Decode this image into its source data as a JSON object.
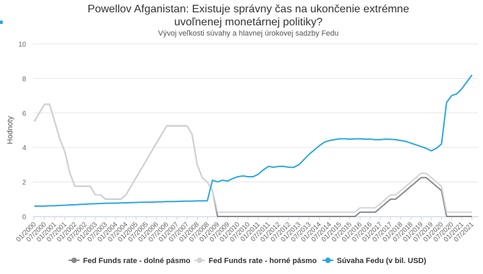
{
  "chart_data": {
    "type": "line",
    "title": "Powellov Afganistan: Existuje správny čas na ukončenie extrémne uvoľnenej monetárnej politiky?",
    "subtitle": "Vývoj veľkosti súvahy a hlavnej úrokovej sadzby Fedu",
    "y_label": "Hodnoty",
    "categories": [
      "01/2000",
      null,
      "07/2000",
      null,
      "01/2001",
      null,
      "07/2001",
      null,
      "01/2002",
      null,
      "07/2002",
      null,
      "01/2003",
      null,
      "07/2003",
      null,
      "01/2004",
      null,
      "07/2004",
      null,
      "01/2005",
      null,
      "07/2005",
      null,
      "01/2006",
      null,
      "07/2006",
      null,
      "01/2007",
      null,
      "07/2007",
      null,
      "01/2008",
      null,
      "07/2008",
      null,
      "01/2009",
      null,
      "07/2009",
      null,
      "01/2010",
      null,
      "07/2010",
      null,
      "01/2011",
      null,
      "07/2011",
      null,
      "01/2012",
      null,
      "07/2012",
      null,
      "01/2013",
      null,
      "07/2013",
      null,
      "01/2014",
      null,
      "07/2014",
      null,
      "01/2015",
      null,
      "07/2015",
      null,
      "01/2016",
      null,
      "07/2016",
      null,
      "01/2017",
      null,
      "07/2017",
      null,
      "01/2018",
      null,
      "07/2018",
      null,
      "01/2019",
      null,
      "07/2019",
      null,
      "01/2020",
      null,
      "07/2020",
      null,
      "01/2021",
      null,
      "07/2021"
    ],
    "series": [
      {
        "name": "Fed Funds rate - dolné pásmo",
        "color": "#888888",
        "values": [
          5.5,
          6.0,
          6.5,
          6.5,
          5.5,
          4.5,
          3.75,
          2.5,
          1.75,
          1.75,
          1.75,
          1.75,
          1.25,
          1.25,
          1.0,
          1.0,
          1.0,
          1.0,
          1.25,
          1.75,
          2.25,
          2.75,
          3.25,
          3.75,
          4.25,
          4.75,
          5.25,
          5.25,
          5.25,
          5.25,
          5.25,
          4.75,
          3.0,
          2.25,
          2.0,
          1.5,
          0,
          0,
          0,
          0,
          0,
          0,
          0,
          0,
          0,
          0,
          0,
          0,
          0,
          0,
          0,
          0,
          0,
          0,
          0,
          0,
          0,
          0,
          0,
          0,
          0,
          0,
          0,
          0,
          0.25,
          0.25,
          0.25,
          0.25,
          0.5,
          0.75,
          1.0,
          1.0,
          1.25,
          1.5,
          1.75,
          2.0,
          2.25,
          2.25,
          2.0,
          1.75,
          1.5,
          0,
          0,
          0,
          0,
          0,
          0
        ]
      },
      {
        "name": "Fed Funds rate - horné pásmo",
        "color": "#d3d3d3",
        "values": [
          5.5,
          6.0,
          6.5,
          6.5,
          5.5,
          4.5,
          3.75,
          2.5,
          1.75,
          1.75,
          1.75,
          1.75,
          1.25,
          1.25,
          1.0,
          1.0,
          1.0,
          1.0,
          1.25,
          1.75,
          2.25,
          2.75,
          3.25,
          3.75,
          4.25,
          4.75,
          5.25,
          5.25,
          5.25,
          5.25,
          5.25,
          4.75,
          3.0,
          2.25,
          2.0,
          1.5,
          0.25,
          0.25,
          0.25,
          0.25,
          0.25,
          0.25,
          0.25,
          0.25,
          0.25,
          0.25,
          0.25,
          0.25,
          0.25,
          0.25,
          0.25,
          0.25,
          0.25,
          0.25,
          0.25,
          0.25,
          0.25,
          0.25,
          0.25,
          0.25,
          0.25,
          0.25,
          0.25,
          0.25,
          0.5,
          0.5,
          0.5,
          0.5,
          0.75,
          1.0,
          1.25,
          1.25,
          1.5,
          1.75,
          2.0,
          2.25,
          2.5,
          2.5,
          2.25,
          2.0,
          1.75,
          0.25,
          0.25,
          0.25,
          0.25,
          0.25,
          0.25
        ]
      },
      {
        "name": "Súvaha Fedu (v bil. USD)",
        "color": "#2aa6e0",
        "values": [
          0.6,
          0.6,
          0.6,
          0.62,
          0.62,
          0.64,
          0.65,
          0.67,
          0.68,
          0.7,
          0.71,
          0.73,
          0.74,
          0.75,
          0.76,
          0.77,
          0.77,
          0.78,
          0.79,
          0.8,
          0.81,
          0.82,
          0.82,
          0.83,
          0.84,
          0.85,
          0.86,
          0.86,
          0.87,
          0.88,
          0.89,
          0.89,
          0.9,
          0.9,
          0.91,
          2.1,
          2.0,
          2.1,
          2.05,
          2.2,
          2.3,
          2.35,
          2.3,
          2.3,
          2.45,
          2.7,
          2.9,
          2.85,
          2.9,
          2.9,
          2.85,
          2.85,
          3.0,
          3.3,
          3.6,
          3.85,
          4.1,
          4.3,
          4.4,
          4.45,
          4.5,
          4.5,
          4.48,
          4.5,
          4.5,
          4.48,
          4.48,
          4.45,
          4.45,
          4.48,
          4.47,
          4.45,
          4.4,
          4.35,
          4.25,
          4.15,
          4.05,
          3.95,
          3.8,
          3.95,
          4.2,
          6.6,
          7.0,
          7.1,
          7.4,
          7.8,
          8.2
        ]
      }
    ],
    "ylim": [
      0,
      10
    ],
    "yticks": [
      0,
      2,
      4,
      6,
      8,
      10
    ],
    "grid": true
  }
}
